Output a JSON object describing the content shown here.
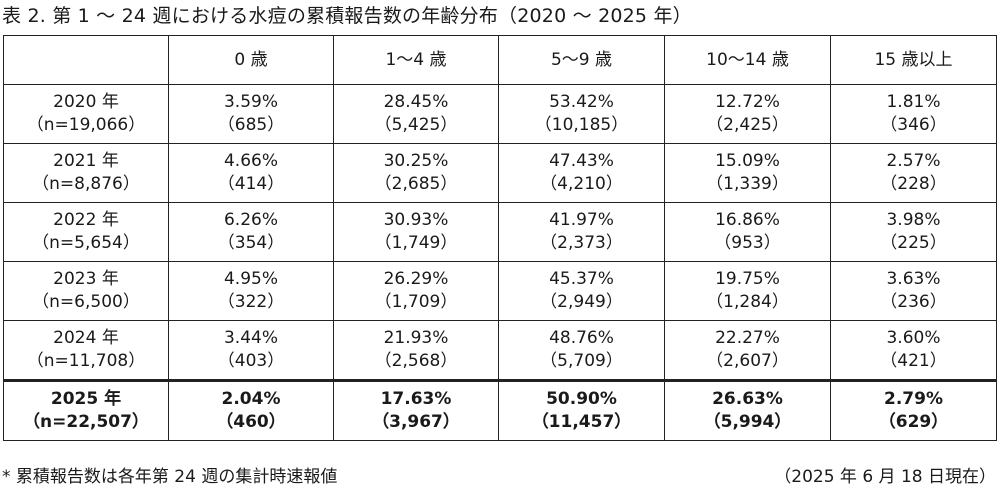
{
  "title": "表 2. 第 1 〜 24 週における水痘の累積報告数の年齢分布（2020 〜 2025 年）",
  "table": {
    "header": [
      "",
      "0 歳",
      "1〜4 歳",
      "5〜9 歳",
      "10〜14 歳",
      "15 歳以上"
    ],
    "rows": [
      {
        "year": "2020 年",
        "n": "（n=19,066）",
        "cells": [
          {
            "pct": "3.59%",
            "count": "（685）"
          },
          {
            "pct": "28.45%",
            "count": "（5,425）"
          },
          {
            "pct": "53.42%",
            "count": "（10,185）"
          },
          {
            "pct": "12.72%",
            "count": "（2,425）"
          },
          {
            "pct": "1.81%",
            "count": "（346）"
          }
        ]
      },
      {
        "year": "2021 年",
        "n": "（n=8,876）",
        "cells": [
          {
            "pct": "4.66%",
            "count": "（414）"
          },
          {
            "pct": "30.25%",
            "count": "（2,685）"
          },
          {
            "pct": "47.43%",
            "count": "（4,210）"
          },
          {
            "pct": "15.09%",
            "count": "（1,339）"
          },
          {
            "pct": "2.57%",
            "count": "（228）"
          }
        ]
      },
      {
        "year": "2022 年",
        "n": "（n=5,654）",
        "cells": [
          {
            "pct": "6.26%",
            "count": "（354）"
          },
          {
            "pct": "30.93%",
            "count": "（1,749）"
          },
          {
            "pct": "41.97%",
            "count": "（2,373）"
          },
          {
            "pct": "16.86%",
            "count": "（953）"
          },
          {
            "pct": "3.98%",
            "count": "（225）"
          }
        ]
      },
      {
        "year": "2023 年",
        "n": "（n=6,500）",
        "cells": [
          {
            "pct": "4.95%",
            "count": "（322）"
          },
          {
            "pct": "26.29%",
            "count": "（1,709）"
          },
          {
            "pct": "45.37%",
            "count": "（2,949）"
          },
          {
            "pct": "19.75%",
            "count": "（1,284）"
          },
          {
            "pct": "3.63%",
            "count": "（236）"
          }
        ]
      },
      {
        "year": "2024 年",
        "n": "（n=11,708）",
        "cells": [
          {
            "pct": "3.44%",
            "count": "（403）"
          },
          {
            "pct": "21.93%",
            "count": "（2,568）"
          },
          {
            "pct": "48.76%",
            "count": "（5,709）"
          },
          {
            "pct": "22.27%",
            "count": "（2,607）"
          },
          {
            "pct": "3.60%",
            "count": "（421）"
          }
        ]
      },
      {
        "year": "2025 年",
        "n": "（n=22,507）",
        "cells": [
          {
            "pct": "2.04%",
            "count": "（460）"
          },
          {
            "pct": "17.63%",
            "count": "（3,967）"
          },
          {
            "pct": "50.90%",
            "count": "（11,457）"
          },
          {
            "pct": "26.63%",
            "count": "（5,994）"
          },
          {
            "pct": "2.79%",
            "count": "（629）"
          }
        ]
      }
    ]
  },
  "footer": {
    "note": "* 累積報告数は各年第 24 週の集計時速報値",
    "date": "（2025 年 6 月 18 日現在）"
  }
}
